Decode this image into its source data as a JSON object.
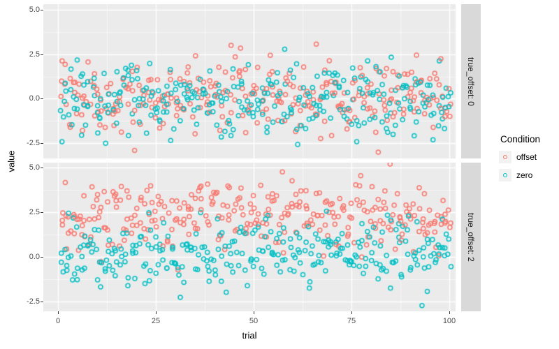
{
  "chart_data": {
    "type": "scatter",
    "title": "",
    "axes": {
      "x": {
        "label": "trial",
        "tick_labels": [
          "0",
          "25",
          "50",
          "75",
          "100"
        ],
        "tick_values": [
          0,
          25,
          50,
          75,
          100
        ],
        "minor_values": [
          12.5,
          37.5,
          62.5,
          87.5
        ],
        "range": [
          -3.75,
          101.6
        ]
      },
      "y": {
        "label": "value",
        "tick_labels": [
          "5.0",
          "2.5",
          "0.0",
          "-2.5"
        ],
        "tick_values": [
          5.0,
          2.5,
          0.0,
          -2.5
        ],
        "minor_values": [
          3.75,
          1.25,
          -1.25
        ],
        "range": [
          -3.4,
          5.3
        ]
      }
    },
    "facets": [
      {
        "strip_label": "true_offset: 0",
        "series": [
          {
            "name": "offset",
            "color": "#F8766D",
            "mean": 0.05,
            "sd": 1.05
          },
          {
            "name": "zero",
            "color": "#00BFC4",
            "mean": 0.0,
            "sd": 1.05
          }
        ]
      },
      {
        "strip_label": "true_offset: 2",
        "series": [
          {
            "name": "offset",
            "color": "#F8766D",
            "mean": 2.3,
            "sd": 0.95
          },
          {
            "name": "zero",
            "color": "#00BFC4",
            "mean": 0.2,
            "sd": 1.0
          }
        ]
      }
    ],
    "n_trials": 100,
    "points_per_trial_per_series": 3,
    "seed": 20240607,
    "legend": {
      "title": "Condition",
      "entries": [
        {
          "label": "offset",
          "color": "#F8766D"
        },
        {
          "label": "zero",
          "color": "#00BFC4"
        }
      ],
      "position": "right"
    },
    "style": {
      "panel_bg": "#EBEBEB",
      "strip_bg": "#D9D9D9",
      "grid_major": "#FFFFFF",
      "grid_minor": "rgba(255,255,255,0.55)",
      "legend_key_bg": "#F2F2F2",
      "axis_text_color": "#4D4D4D",
      "point_radius": 3.0,
      "point_stroke_width": 1.5,
      "grid": "on"
    }
  }
}
